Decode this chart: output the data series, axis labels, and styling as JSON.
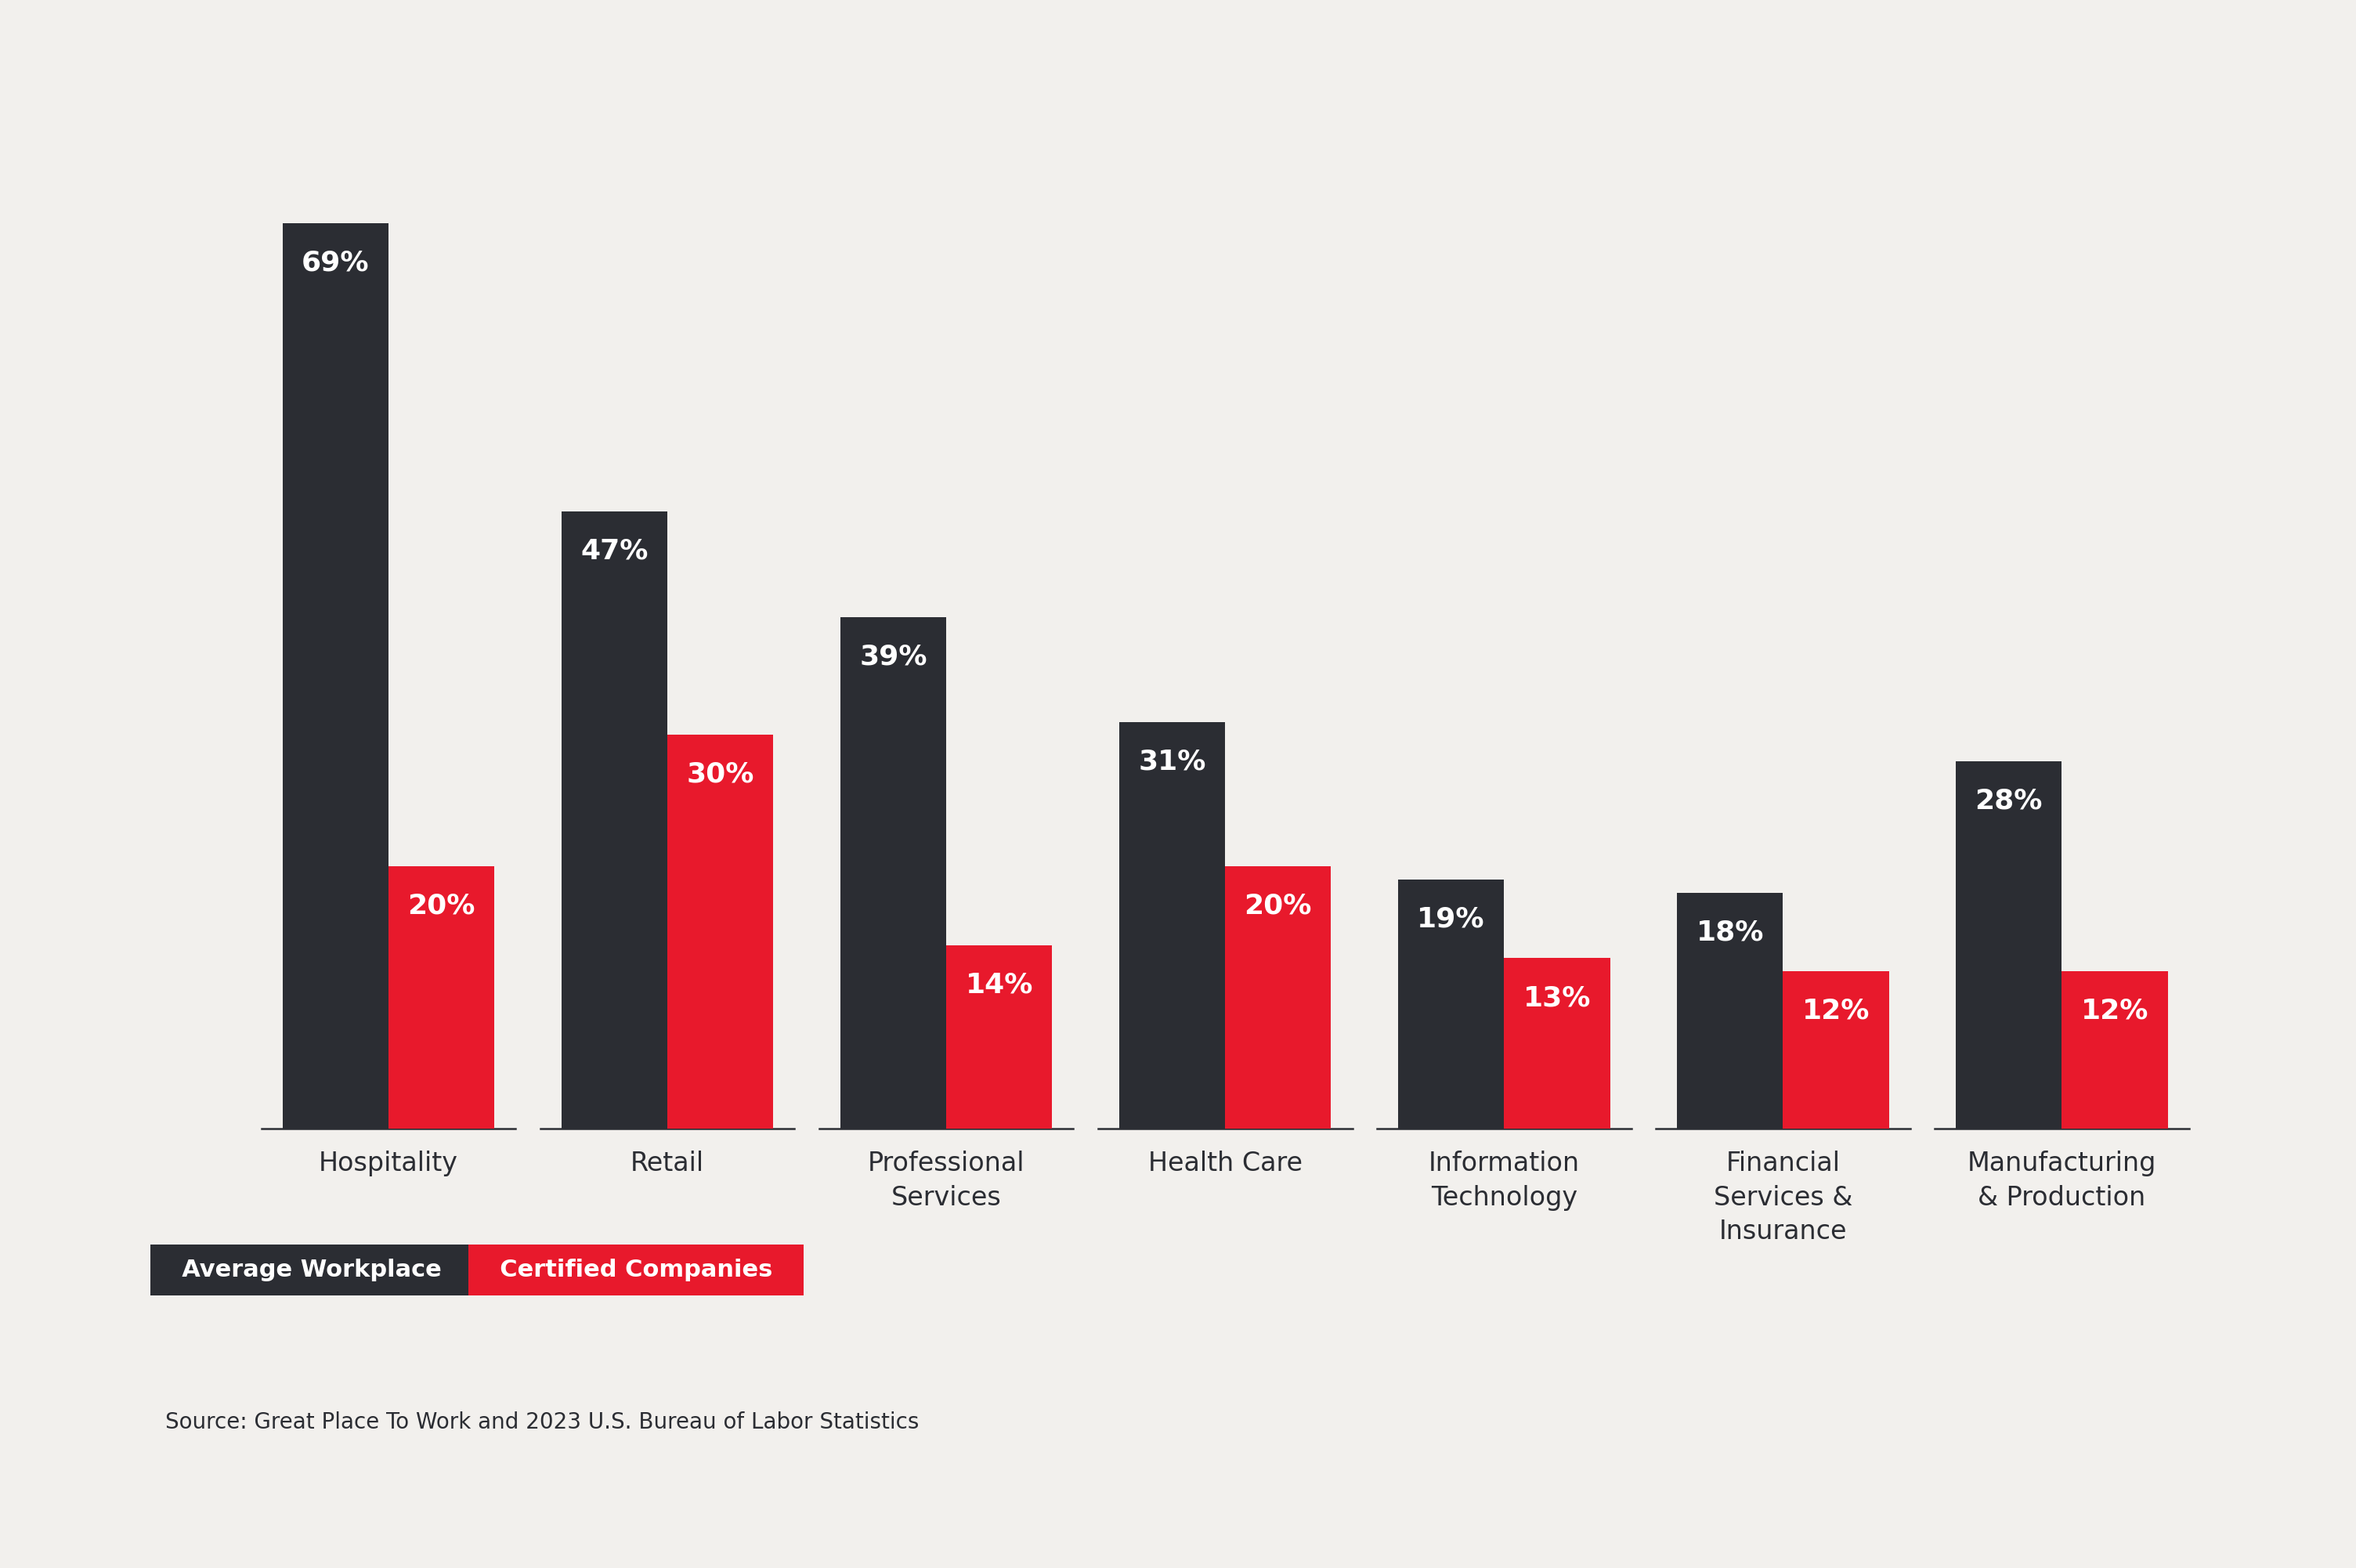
{
  "categories": [
    "Hospitality",
    "Retail",
    "Professional\nServices",
    "Health Care",
    "Information\nTechnology",
    "Financial\nServices &\nInsurance",
    "Manufacturing\n& Production"
  ],
  "avg_values": [
    69,
    47,
    39,
    31,
    19,
    18,
    28
  ],
  "cert_values": [
    20,
    30,
    14,
    20,
    13,
    12,
    12
  ],
  "avg_color": "#2b2d33",
  "cert_color": "#e8192c",
  "background_color": "#f2f0ed",
  "label_color_white": "#ffffff",
  "source_text": "Source: Great Place To Work and 2023 U.S. Bureau of Labor Statistics",
  "legend_avg": "Average Workplace",
  "legend_cert": "Certified Companies",
  "bar_width": 0.38,
  "ylim": [
    0,
    80
  ],
  "tick_fontsize": 24,
  "legend_fontsize": 22,
  "source_fontsize": 20,
  "value_fontsize": 26
}
